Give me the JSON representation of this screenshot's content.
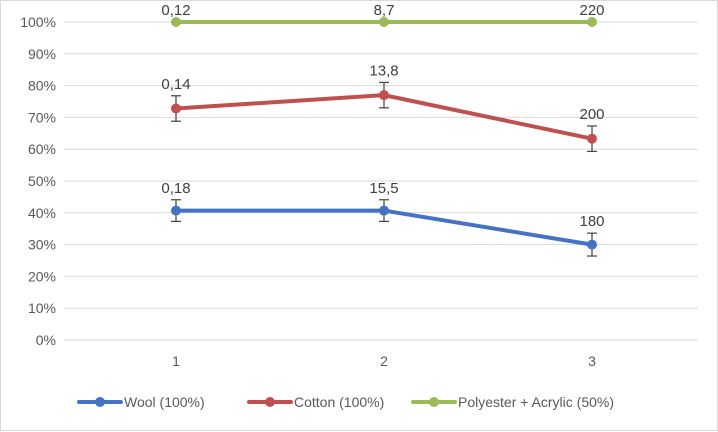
{
  "chart_data": {
    "type": "line",
    "title": "",
    "xlabel": "",
    "ylabel": "",
    "categories": [
      "1",
      "2",
      "3"
    ],
    "ylim": [
      0,
      100
    ],
    "yticks": [
      0,
      10,
      20,
      30,
      40,
      50,
      60,
      70,
      80,
      90,
      100
    ],
    "ytick_labels": [
      "0%",
      "10%",
      "20%",
      "30%",
      "40%",
      "50%",
      "60%",
      "70%",
      "80%",
      "90%",
      "100%"
    ],
    "grid": true,
    "legend_position": "bottom",
    "series": [
      {
        "name": "Wool (100%)",
        "color": "#4472c4",
        "values": [
          40.7,
          40.7,
          30.0
        ],
        "error": [
          3.4,
          3.4,
          3.6
        ],
        "labels": [
          "0,18",
          "15,5",
          "180"
        ]
      },
      {
        "name": "Cotton (100%)",
        "color": "#c0504d",
        "values": [
          72.8,
          77.0,
          63.3
        ],
        "error": [
          4.0,
          4.0,
          4.0
        ],
        "labels": [
          "0,14",
          "13,8",
          "200"
        ]
      },
      {
        "name": "Polyester + Acrylic (50%)",
        "color": "#9bbb59",
        "values": [
          100,
          100,
          100
        ],
        "error": [
          0,
          0,
          0
        ],
        "labels": [
          "0,12",
          "8,7",
          "220"
        ]
      }
    ]
  }
}
